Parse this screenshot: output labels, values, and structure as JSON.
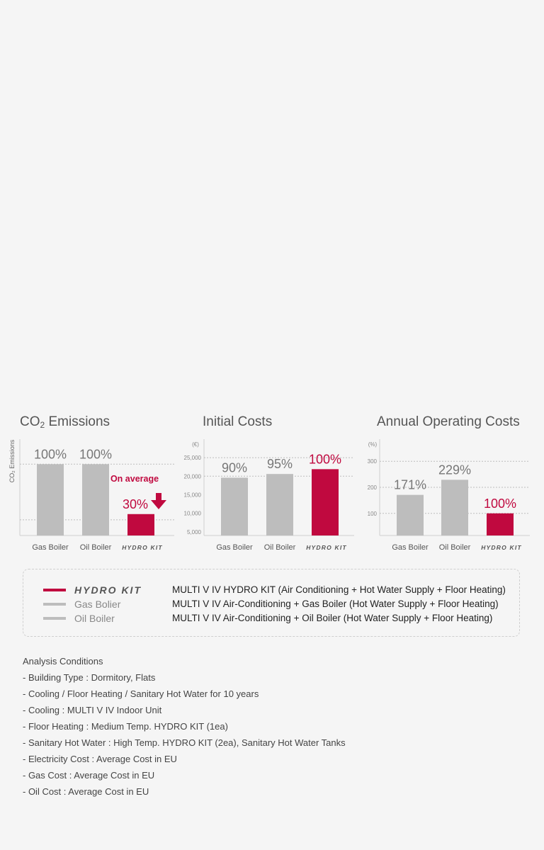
{
  "colors": {
    "accent": "#c0093f",
    "bar_gray": "#bdbdbd",
    "text_gray": "#666666"
  },
  "charts": [
    {
      "id": "co2",
      "title_pre": "CO",
      "title_sub": "2",
      "title_post": " Emissions",
      "ylabel": "CO₂ Emissions",
      "unit": "",
      "annotation": "On average",
      "annotation_value": "30%",
      "chart_data": {
        "type": "bar",
        "categories": [
          "Gas Boiler",
          "Oil Boiler",
          "HYDRO KIT"
        ],
        "values": [
          100,
          100,
          30
        ],
        "labels": [
          "100%",
          "100%",
          "30%"
        ],
        "ylim": [
          0,
          135
        ],
        "yticks": [],
        "gridlines": [
          100,
          22
        ]
      }
    },
    {
      "id": "initial",
      "title": "Initial Costs",
      "unit": "(€)",
      "chart_data": {
        "type": "bar",
        "categories": [
          "Gas Boiler",
          "Oil Boiler",
          "HYDRO KIT"
        ],
        "values": [
          19600,
          20600,
          21900
        ],
        "labels": [
          "90%",
          "95%",
          "100%"
        ],
        "ylim": [
          4000,
          30000
        ],
        "yticks": [
          "5,000",
          "10,000",
          "15,000",
          "20,000",
          "25,000"
        ],
        "ytick_values": [
          5000,
          10000,
          15000,
          20000,
          25000
        ],
        "gridlines": [
          20000,
          25000
        ]
      }
    },
    {
      "id": "annual",
      "title": "Annual Operating Costs",
      "unit": "(%)",
      "chart_data": {
        "type": "bar",
        "categories": [
          "Gas Boiler",
          "Oil Boiler",
          "HYDRO KIT"
        ],
        "values": [
          171,
          229,
          100
        ],
        "labels": [
          "171%",
          "229%",
          "100%"
        ],
        "ylim": [
          15,
          385
        ],
        "yticks": [
          "100",
          "200",
          "300"
        ],
        "ytick_values": [
          100,
          200,
          300
        ],
        "gridlines": [
          100,
          200,
          300
        ]
      }
    }
  ],
  "legend": [
    {
      "name": "HYDRO KIT",
      "desc": "MULTI V IV HYDRO KIT (Air Conditioning + Hot Water Supply + Floor Heating)",
      "color": "#c0093f"
    },
    {
      "name": "Gas Bolier",
      "desc": "MULTI V IV Air-Conditioning + Gas Boiler (Hot Water Supply + Floor Heating)",
      "color": "#bdbdbd"
    },
    {
      "name": "Oil Boiler",
      "desc": "MULTI V IV Air-Conditioning + Oil Boiler (Hot Water Supply + Floor Heating)",
      "color": "#bdbdbd"
    }
  ],
  "analysis": {
    "title": "Analysis Conditions",
    "lines": [
      "- Building Type : Dormitory, Flats",
      "- Cooling / Floor Heating / Sanitary Hot Water for 10 years",
      "- Cooling : MULTI V IV Indoor Unit",
      "- Floor Heating : Medium Temp. HYDRO KIT (1ea)",
      "- Sanitary Hot Water : High Temp. HYDRO KIT (2ea), Sanitary Hot Water Tanks",
      "- Electricity Cost : Average Cost in EU",
      "- Gas Cost : Average Cost in EU",
      "- Oil Cost : Average Cost in EU"
    ]
  }
}
